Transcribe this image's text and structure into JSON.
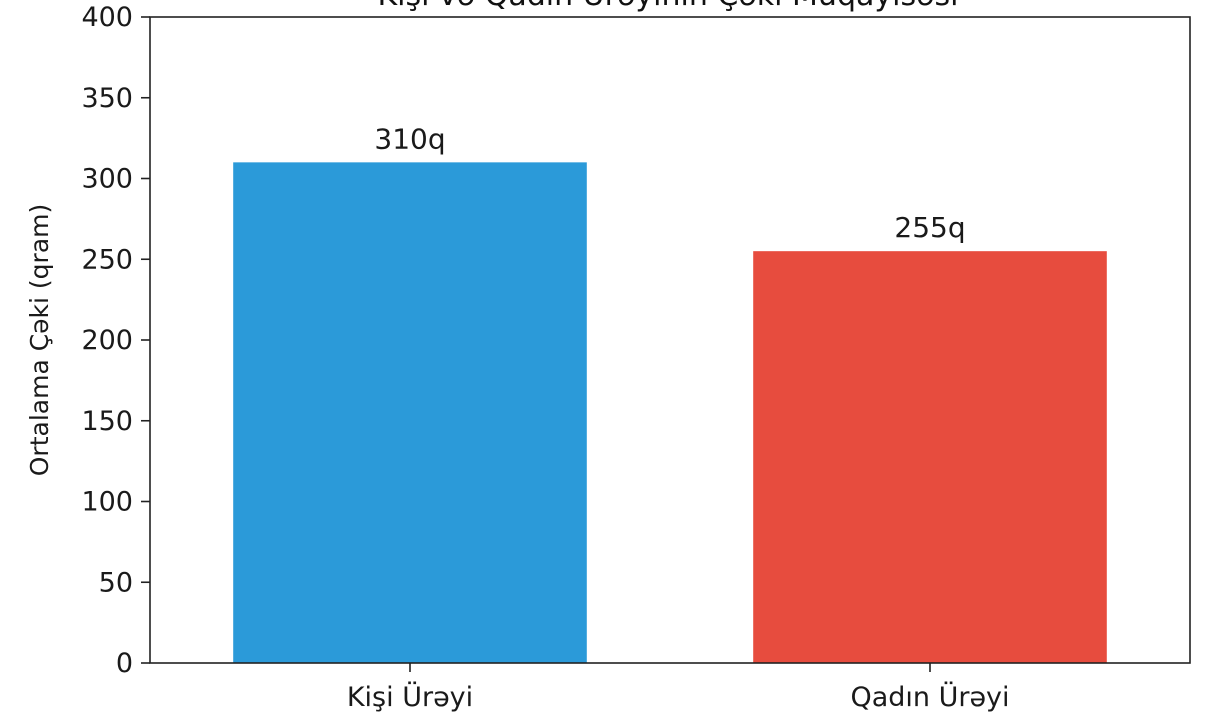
{
  "chart_data": {
    "type": "bar",
    "title": "Kişi və Qadın Ürəyinin Çəki Müqayisəsi",
    "categories": [
      "Kişi Ürəyi",
      "Qadın Ürəyi"
    ],
    "values": [
      310,
      255
    ],
    "value_labels": [
      "310q",
      "255q"
    ],
    "colors": [
      "#2b9ad9",
      "#e74c3e"
    ],
    "xlabel": "",
    "ylabel": "Ortalama Çəki (qram)",
    "ylim": [
      0,
      400
    ],
    "yticks": [
      0,
      50,
      100,
      150,
      200,
      250,
      300,
      350,
      400
    ],
    "grid": false
  }
}
